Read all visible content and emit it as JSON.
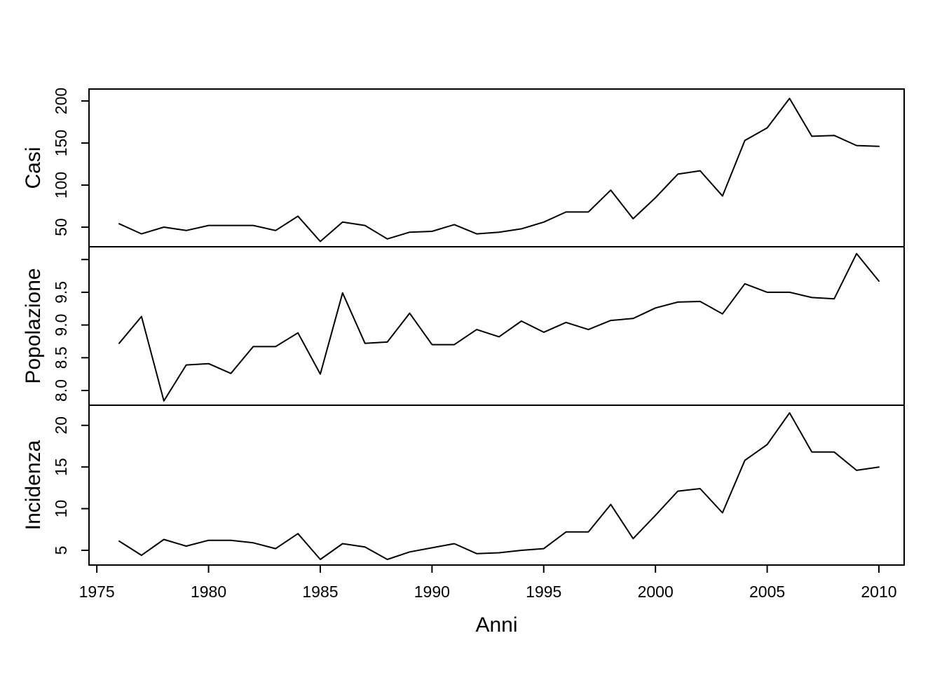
{
  "figure": {
    "background": "#ffffff",
    "line_color": "#000000",
    "axis_color": "#000000"
  },
  "chart_data": {
    "type": "line",
    "title": "",
    "xlabel": "Anni",
    "legend": "none",
    "grid": false,
    "x": [
      1976,
      1977,
      1978,
      1979,
      1980,
      1981,
      1982,
      1983,
      1984,
      1985,
      1986,
      1987,
      1988,
      1989,
      1990,
      1991,
      1992,
      1993,
      1994,
      1995,
      1996,
      1997,
      1998,
      1999,
      2000,
      2001,
      2002,
      2003,
      2004,
      2005,
      2006,
      2007,
      2008,
      2009,
      2010
    ],
    "xlim": [
      1974.65,
      2011.13
    ],
    "x_ticks": [
      {
        "v": 1975,
        "label": "1975"
      },
      {
        "v": 1980,
        "label": "1980"
      },
      {
        "v": 1985,
        "label": "1985"
      },
      {
        "v": 1990,
        "label": "1990"
      },
      {
        "v": 1995,
        "label": "1995"
      },
      {
        "v": 2000,
        "label": "2000"
      },
      {
        "v": 2005,
        "label": "2005"
      },
      {
        "v": 2010,
        "label": "2010"
      }
    ],
    "panels": [
      {
        "name": "casi",
        "ylabel": "Casi",
        "ylim": [
          26.7,
          214.2
        ],
        "y_ticks": [
          {
            "v": 50,
            "label": "50"
          },
          {
            "v": 100,
            "label": "100"
          },
          {
            "v": 150,
            "label": "150"
          },
          {
            "v": 200,
            "label": "200"
          }
        ],
        "values": [
          54,
          42,
          50,
          46,
          52,
          52,
          52,
          46,
          63,
          33,
          56,
          52,
          36,
          44,
          45,
          53,
          42,
          44,
          48,
          56,
          68,
          68,
          94,
          60,
          85,
          113,
          117,
          87,
          153,
          168,
          203,
          158,
          159,
          147,
          146
        ]
      },
      {
        "name": "popolazione",
        "ylabel": "Popolazione",
        "ylim": [
          7.775,
          10.195
        ],
        "y_ticks": [
          {
            "v": 8.0,
            "label": "8.0"
          },
          {
            "v": 8.5,
            "label": "8.5"
          },
          {
            "v": 9.0,
            "label": "9.0"
          },
          {
            "v": 9.5,
            "label": "9.5"
          },
          {
            "v": 10.0,
            "label": ""
          }
        ],
        "values": [
          8.72,
          9.13,
          7.84,
          8.39,
          8.41,
          8.26,
          8.67,
          8.67,
          8.88,
          8.25,
          9.49,
          8.72,
          8.74,
          9.18,
          8.7,
          8.7,
          8.93,
          8.82,
          9.06,
          8.89,
          9.04,
          8.93,
          9.07,
          9.1,
          9.26,
          9.35,
          9.36,
          9.17,
          9.63,
          9.5,
          9.5,
          9.42,
          9.4,
          10.09,
          9.67
        ]
      },
      {
        "name": "incidenza",
        "ylabel": "Incidenza",
        "ylim": [
          3.23,
          22.42
        ],
        "y_ticks": [
          {
            "v": 5,
            "label": "5"
          },
          {
            "v": 10,
            "label": "10"
          },
          {
            "v": 15,
            "label": "15"
          },
          {
            "v": 20,
            "label": "20"
          }
        ],
        "values": [
          6.1,
          4.4,
          6.3,
          5.5,
          6.2,
          6.2,
          5.9,
          5.2,
          7.0,
          3.9,
          5.8,
          5.4,
          3.9,
          4.8,
          5.3,
          5.8,
          4.6,
          4.7,
          5.0,
          5.2,
          7.2,
          7.2,
          10.5,
          6.4,
          9.2,
          12.1,
          12.4,
          9.5,
          15.8,
          17.7,
          21.5,
          16.8,
          16.8,
          14.6,
          15.0
        ]
      }
    ]
  }
}
